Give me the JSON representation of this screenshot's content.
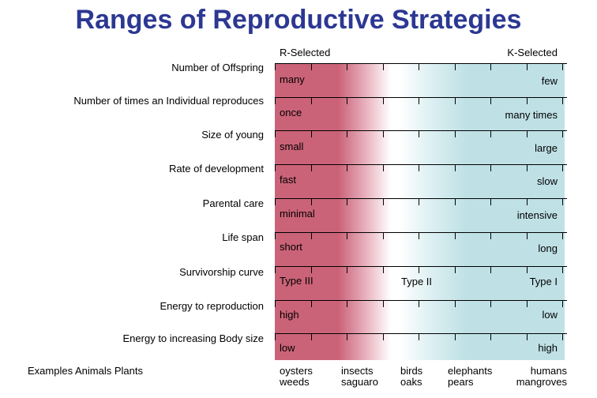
{
  "title": "Ranges of Reproductive Strategies",
  "header": {
    "left": "R-Selected",
    "right": "K-Selected"
  },
  "rows": [
    {
      "label": "Number of Offspring",
      "left": "many",
      "right": "few"
    },
    {
      "label": "Number of times an Individual reproduces",
      "left": "once",
      "right": "many times"
    },
    {
      "label": "Size of young",
      "left": "small",
      "right": "large"
    },
    {
      "label": "Rate of development",
      "left": "fast",
      "right": "slow"
    },
    {
      "label": "Parental care",
      "left": "minimal",
      "right": "intensive"
    },
    {
      "label": "Life span",
      "left": "short",
      "right": "long"
    },
    {
      "label": "Survivorship curve",
      "left": "Type III",
      "middle": "Type II",
      "right": "Type I"
    },
    {
      "label": "Energy to reproduction",
      "left": "high",
      "right": "low"
    },
    {
      "label": "Energy to increasing Body size",
      "left": "low",
      "right": "high"
    }
  ],
  "examples": {
    "label": "Examples Animals Plants",
    "items": [
      {
        "animal": "oysters",
        "plant": "weeds"
      },
      {
        "animal": "insects",
        "plant": "saguaro"
      },
      {
        "animal": "birds",
        "plant": "oaks"
      },
      {
        "animal": "elephants",
        "plant": "pears"
      },
      {
        "animal": "humans",
        "plant": "mangroves"
      }
    ]
  },
  "colors": {
    "title": "#2c3892",
    "r_selected": "#cb6378",
    "k_selected": "#bfe1e6"
  }
}
